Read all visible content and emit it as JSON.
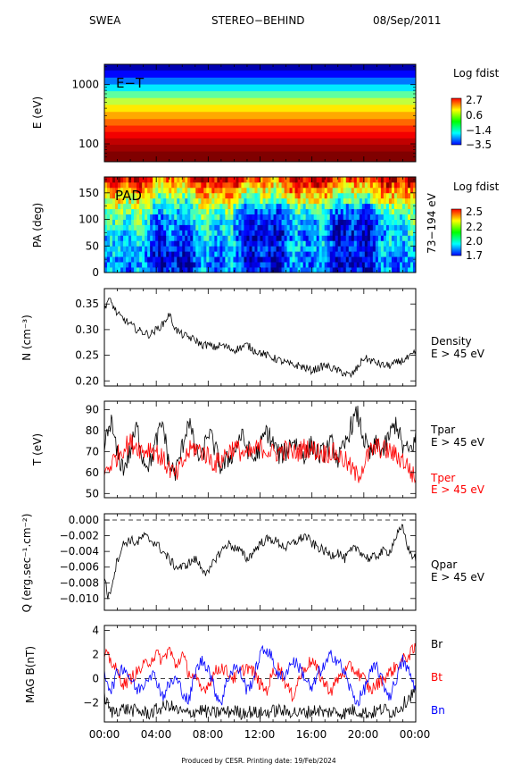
{
  "header": {
    "instrument": "SWEA",
    "spacecraft": "STEREO−BEHIND",
    "date": "08/Sep/2011"
  },
  "footer": {
    "text": "Produced by CESR.   Printing date: 19/Feb/2024"
  },
  "time_axis": {
    "ticks": [
      "00:00",
      "04:00",
      "08:00",
      "12:00",
      "16:00",
      "20:00",
      "00:00"
    ],
    "range_hours": [
      0,
      24
    ]
  },
  "colors": {
    "black": "#000000",
    "red": "#ff0000",
    "blue": "#0000ff"
  },
  "chart_data": [
    {
      "type": "heatmap",
      "title": "",
      "ylabel": "E (eV)",
      "yscale": "log",
      "ylim": [
        50,
        2200
      ],
      "yticks": [
        100,
        1000
      ],
      "ytick_labels": [
        "100",
        "1000"
      ],
      "panel_label": "E−T",
      "colorbar": {
        "title": "Log fdist",
        "ticks": [
          2.7,
          0.6,
          -1.4,
          -3.5
        ],
        "tick_labels": [
          "2.7",
          "0.6",
          "−1.4",
          "−3.5"
        ],
        "range": [
          -3.5,
          2.7
        ]
      },
      "bands": {
        "energy_eV": [
          2000,
          1500,
          1150,
          880,
          680,
          520,
          400,
          300,
          230,
          180,
          140,
          110,
          85,
          65
        ],
        "log_fdist": [
          -3.2,
          -2.7,
          -2.0,
          -1.3,
          -0.6,
          0.0,
          0.5,
          0.9,
          1.3,
          1.7,
          2.0,
          2.3,
          2.5,
          2.7
        ]
      }
    },
    {
      "type": "heatmap",
      "title": "",
      "ylabel": "PA (deg)",
      "ylim": [
        0,
        180
      ],
      "yticks": [
        0,
        50,
        100,
        150
      ],
      "ytick_labels": [
        "0",
        "50",
        "100",
        "150"
      ],
      "panel_label": "PAD",
      "right_label": "73−194 eV",
      "colorbar": {
        "title": "Log fdist",
        "ticks": [
          2.5,
          2.2,
          2.0,
          1.7
        ],
        "tick_labels": [
          "2.5",
          "2.2",
          "2.0",
          "1.7"
        ],
        "range": [
          1.7,
          2.5
        ]
      },
      "time_hours": [
        0,
        2,
        4,
        6,
        8,
        10,
        12,
        14,
        16,
        18,
        20,
        22,
        24
      ],
      "pa_profile": {
        "pitch_angle_deg": [
          0,
          30,
          60,
          90,
          120,
          150,
          180
        ],
        "log_fdist_mean": [
          1.85,
          1.85,
          1.9,
          1.95,
          2.05,
          2.2,
          2.4
        ]
      }
    },
    {
      "type": "line",
      "title": "",
      "ylabel": "N (cm⁻³)",
      "ylim": [
        0.19,
        0.38
      ],
      "yticks": [
        0.2,
        0.25,
        0.3,
        0.35
      ],
      "ytick_labels": [
        "0.20",
        "0.25",
        "0.30",
        "0.35"
      ],
      "series": [
        {
          "name": "Density",
          "sublabel": "E > 45 eV",
          "color": "#000000",
          "x": [
            0,
            0.3,
            0.6,
            1,
            1.5,
            2,
            2.5,
            3,
            3.5,
            4,
            4.5,
            5,
            5.5,
            6,
            6.5,
            7,
            7.5,
            8,
            8.5,
            9,
            9.5,
            10,
            10.5,
            11,
            11.5,
            12,
            12.5,
            13,
            13.5,
            14,
            14.5,
            15,
            15.5,
            16,
            16.5,
            17,
            17.5,
            18,
            18.5,
            19,
            19.5,
            20,
            20.5,
            21,
            21.5,
            22,
            22.5,
            23,
            23.5,
            24
          ],
          "y": [
            0.34,
            0.36,
            0.35,
            0.33,
            0.32,
            0.31,
            0.3,
            0.295,
            0.29,
            0.3,
            0.31,
            0.33,
            0.3,
            0.29,
            0.285,
            0.28,
            0.27,
            0.27,
            0.265,
            0.27,
            0.265,
            0.26,
            0.265,
            0.27,
            0.26,
            0.255,
            0.25,
            0.245,
            0.24,
            0.235,
            0.23,
            0.23,
            0.225,
            0.22,
            0.225,
            0.23,
            0.225,
            0.22,
            0.215,
            0.21,
            0.225,
            0.245,
            0.24,
            0.235,
            0.23,
            0.23,
            0.235,
            0.24,
            0.245,
            0.255
          ]
        }
      ]
    },
    {
      "type": "line",
      "title": "",
      "ylabel": "T (eV)",
      "ylim": [
        48,
        94
      ],
      "yticks": [
        50,
        60,
        70,
        80,
        90
      ],
      "ytick_labels": [
        "50",
        "60",
        "70",
        "80",
        "90"
      ],
      "series": [
        {
          "name": "Tpar",
          "sublabel": "E > 45 eV",
          "color": "#000000",
          "x": [
            0,
            0.5,
            1,
            1.5,
            2,
            2.5,
            3,
            3.5,
            4,
            4.5,
            5,
            5.5,
            6,
            6.5,
            7,
            7.5,
            8,
            8.5,
            9,
            9.5,
            10,
            10.5,
            11,
            11.5,
            12,
            12.5,
            13,
            13.5,
            14,
            14.5,
            15,
            15.5,
            16,
            16.5,
            17,
            17.5,
            18,
            18.5,
            19,
            19.5,
            20,
            20.5,
            21,
            21.5,
            22,
            22.5,
            23,
            23.5,
            24
          ],
          "y": [
            72,
            85,
            68,
            62,
            70,
            82,
            66,
            64,
            75,
            84,
            63,
            60,
            72,
            86,
            70,
            66,
            80,
            72,
            62,
            66,
            70,
            78,
            72,
            66,
            72,
            80,
            74,
            68,
            70,
            76,
            72,
            68,
            74,
            68,
            70,
            74,
            66,
            72,
            82,
            88,
            76,
            68,
            74,
            70,
            78,
            84,
            72,
            70,
            76
          ]
        },
        {
          "name": "Tper",
          "sublabel": "E > 45 eV",
          "color": "#ff0000",
          "x": [
            0,
            0.5,
            1,
            1.5,
            2,
            2.5,
            3,
            3.5,
            4,
            4.5,
            5,
            5.5,
            6,
            6.5,
            7,
            7.5,
            8,
            8.5,
            9,
            9.5,
            10,
            10.5,
            11,
            11.5,
            12,
            12.5,
            13,
            13.5,
            14,
            14.5,
            15,
            15.5,
            16,
            16.5,
            17,
            17.5,
            18,
            18.5,
            19,
            19.5,
            20,
            20.5,
            21,
            21.5,
            22,
            22.5,
            23,
            23.5,
            24
          ],
          "y": [
            60,
            64,
            68,
            72,
            74,
            73,
            70,
            72,
            70,
            66,
            62,
            58,
            64,
            70,
            72,
            70,
            68,
            64,
            66,
            70,
            72,
            70,
            68,
            70,
            72,
            71,
            69,
            70,
            71,
            69,
            70,
            72,
            71,
            70,
            69,
            70,
            68,
            66,
            62,
            58,
            64,
            70,
            72,
            71,
            70,
            68,
            66,
            62,
            56
          ]
        }
      ]
    },
    {
      "type": "line",
      "title": "",
      "ylabel": "Q (erg.sec⁻¹.cm⁻²)",
      "ylim": [
        -0.0115,
        0.0008
      ],
      "yticks": [
        0.0,
        -0.002,
        -0.004,
        -0.006,
        -0.008,
        -0.01
      ],
      "ytick_labels": [
        "0.000",
        "−0.002",
        "−0.004",
        "−0.006",
        "−0.008",
        "−0.010"
      ],
      "reference_line": 0,
      "series": [
        {
          "name": "Qpar",
          "sublabel": "E > 45 eV",
          "color": "#000000",
          "x": [
            0,
            0.3,
            0.6,
            1,
            1.5,
            2,
            2.5,
            3,
            3.5,
            4,
            4.5,
            5,
            5.5,
            6,
            6.5,
            7,
            7.5,
            8,
            8.5,
            9,
            9.5,
            10,
            10.5,
            11,
            11.5,
            12,
            12.5,
            13,
            13.5,
            14,
            14.5,
            15,
            15.5,
            16,
            16.5,
            17,
            17.5,
            18,
            18.5,
            19,
            19.5,
            20,
            20.5,
            21,
            21.5,
            22,
            22.5,
            23,
            23.5,
            24
          ],
          "y": [
            -0.007,
            -0.01,
            -0.008,
            -0.005,
            -0.003,
            -0.0025,
            -0.003,
            -0.002,
            -0.0025,
            -0.003,
            -0.004,
            -0.005,
            -0.006,
            -0.006,
            -0.0055,
            -0.005,
            -0.006,
            -0.007,
            -0.005,
            -0.004,
            -0.003,
            -0.0035,
            -0.004,
            -0.005,
            -0.004,
            -0.003,
            -0.0025,
            -0.0025,
            -0.003,
            -0.0035,
            -0.003,
            -0.0025,
            -0.002,
            -0.003,
            -0.0035,
            -0.004,
            -0.0045,
            -0.004,
            -0.005,
            -0.004,
            -0.0035,
            -0.0045,
            -0.005,
            -0.0045,
            -0.004,
            -0.004,
            -0.002,
            -0.001,
            -0.004,
            -0.005
          ]
        }
      ]
    },
    {
      "type": "line",
      "title": "",
      "ylabel": "MAG B(nT)",
      "ylim": [
        -3.6,
        4.4
      ],
      "yticks": [
        -2,
        0,
        2,
        4
      ],
      "ytick_labels": [
        "−2",
        "0",
        "2",
        "4"
      ],
      "reference_line": 0,
      "series": [
        {
          "name": "Br",
          "color": "#000000",
          "x": [
            0,
            0.5,
            1,
            1.5,
            2,
            2.5,
            3,
            3.5,
            4,
            4.5,
            5,
            5.5,
            6,
            6.5,
            7,
            7.5,
            8,
            8.5,
            9,
            9.5,
            10,
            10.5,
            11,
            11.5,
            12,
            12.5,
            13,
            13.5,
            14,
            14.5,
            15,
            15.5,
            16,
            16.5,
            17,
            17.5,
            18,
            18.5,
            19,
            19.5,
            20,
            20.5,
            21,
            21.5,
            22,
            22.5,
            23,
            23.5,
            24
          ],
          "y": [
            -1.5,
            -2.8,
            -2.6,
            -2.5,
            -2.6,
            -2.7,
            -2.8,
            -2.9,
            -2.6,
            -2.4,
            -2.2,
            -2.6,
            -2.8,
            -2.9,
            -2.7,
            -2.6,
            -2.8,
            -2.9,
            -2.7,
            -2.8,
            -2.6,
            -2.9,
            -2.7,
            -2.8,
            -2.9,
            -2.8,
            -2.7,
            -2.6,
            -2.8,
            -2.7,
            -2.9,
            -2.8,
            -2.7,
            -2.6,
            -2.9,
            -2.7,
            -2.8,
            -2.9,
            -2.6,
            -2.7,
            -2.8,
            -2.9,
            -2.7,
            -2.5,
            -2.8,
            -2.6,
            -2.2,
            -1.5,
            -1.0
          ]
        },
        {
          "name": "Bt",
          "color": "#ff0000",
          "x": [
            0,
            0.5,
            1,
            1.5,
            2,
            2.5,
            3,
            3.5,
            4,
            4.5,
            5,
            5.5,
            6,
            6.5,
            7,
            7.5,
            8,
            8.5,
            9,
            9.5,
            10,
            10.5,
            11,
            11.5,
            12,
            12.5,
            13,
            13.5,
            14,
            14.5,
            15,
            15.5,
            16,
            16.5,
            17,
            17.5,
            18,
            18.5,
            19,
            19.5,
            20,
            20.5,
            21,
            21.5,
            22,
            22.5,
            23,
            23.5,
            24
          ],
          "y": [
            2.0,
            1.5,
            0.5,
            -0.5,
            0.0,
            0.5,
            1.0,
            1.5,
            2.0,
            1.5,
            2.5,
            1.0,
            2.0,
            0.5,
            0.0,
            -1.0,
            -0.5,
            0.5,
            1.0,
            0.5,
            0.0,
            0.5,
            1.0,
            0.5,
            -0.5,
            -1.0,
            0.5,
            1.0,
            -0.5,
            -1.5,
            0.0,
            1.0,
            1.5,
            0.5,
            -0.5,
            -1.0,
            0.0,
            0.5,
            1.0,
            0.5,
            0.0,
            -1.0,
            -0.5,
            0.0,
            0.5,
            1.0,
            1.5,
            2.0,
            2.5
          ]
        },
        {
          "name": "Bn",
          "color": "#0000ff",
          "x": [
            0,
            0.5,
            1,
            1.5,
            2,
            2.5,
            3,
            3.5,
            4,
            4.5,
            5,
            5.5,
            6,
            6.5,
            7,
            7.5,
            8,
            8.5,
            9,
            9.5,
            10,
            10.5,
            11,
            11.5,
            12,
            12.5,
            13,
            13.5,
            14,
            14.5,
            15,
            15.5,
            16,
            16.5,
            17,
            17.5,
            18,
            18.5,
            19,
            19.5,
            20,
            20.5,
            21,
            21.5,
            22,
            22.5,
            23,
            23.5,
            24
          ],
          "y": [
            0.5,
            -1.0,
            0.5,
            1.0,
            0.0,
            -1.0,
            -0.5,
            0.5,
            0.0,
            -1.5,
            -0.5,
            0.0,
            -1.0,
            -2.0,
            0.5,
            1.5,
            1.0,
            -1.0,
            -2.0,
            0.0,
            1.0,
            0.5,
            -1.0,
            0.0,
            2.0,
            2.5,
            1.5,
            0.0,
            0.5,
            1.5,
            1.0,
            0.0,
            -1.0,
            0.5,
            1.0,
            2.0,
            1.5,
            0.5,
            -1.0,
            -2.0,
            -1.0,
            0.5,
            1.0,
            -0.5,
            -1.5,
            0.0,
            1.5,
            0.5,
            -1.0
          ]
        }
      ]
    }
  ]
}
